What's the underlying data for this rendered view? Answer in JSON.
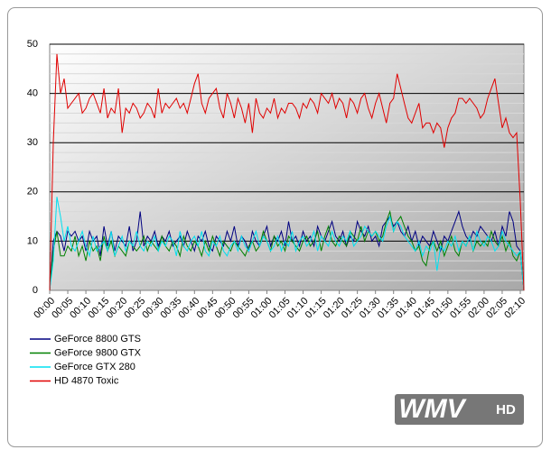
{
  "chart_data": {
    "type": "line",
    "categories": [
      "00:00",
      null,
      null,
      null,
      null,
      "00:05",
      null,
      null,
      null,
      null,
      "00:10",
      null,
      null,
      null,
      null,
      "00:15",
      null,
      null,
      null,
      null,
      "00:20",
      null,
      null,
      null,
      null,
      "00:25",
      null,
      null,
      null,
      null,
      "00:30",
      null,
      null,
      null,
      null,
      "00:35",
      null,
      null,
      null,
      null,
      "00:40",
      null,
      null,
      null,
      null,
      "00:45",
      null,
      null,
      null,
      null,
      "00:50",
      null,
      null,
      null,
      null,
      "00:55",
      null,
      null,
      null,
      null,
      "01:00",
      null,
      null,
      null,
      null,
      "01:05",
      null,
      null,
      null,
      null,
      "01:10",
      null,
      null,
      null,
      null,
      "01:15",
      null,
      null,
      null,
      null,
      "01:20",
      null,
      null,
      null,
      null,
      "01:25",
      null,
      null,
      null,
      null,
      "01:30",
      null,
      null,
      null,
      null,
      "01:35",
      null,
      null,
      null,
      null,
      "01:40",
      null,
      null,
      null,
      null,
      "01:45",
      null,
      null,
      null,
      null,
      "01:50",
      null,
      null,
      null,
      null,
      "01:55",
      null,
      null,
      null,
      null,
      "02:00",
      null,
      null,
      null,
      null,
      "02:05",
      null,
      null,
      null,
      null,
      "02:10",
      null
    ],
    "series": [
      {
        "name": "GeForce 8800 GTS",
        "color": "#000080",
        "values": [
          0,
          10,
          12,
          11,
          8,
          12,
          11,
          12,
          10,
          11,
          8,
          12,
          10,
          11,
          7,
          13,
          9,
          12,
          8,
          11,
          10,
          9,
          13,
          8,
          10,
          16,
          9,
          11,
          10,
          12,
          9,
          11,
          10,
          12,
          9,
          10,
          11,
          9,
          12,
          10,
          8,
          11,
          10,
          12,
          9,
          8,
          11,
          10,
          9,
          12,
          10,
          13,
          9,
          11,
          10,
          8,
          12,
          10,
          9,
          11,
          13,
          9,
          11,
          10,
          12,
          9,
          14,
          10,
          11,
          9,
          12,
          10,
          11,
          9,
          13,
          11,
          10,
          12,
          14,
          11,
          10,
          12,
          9,
          11,
          10,
          14,
          12,
          11,
          13,
          10,
          11,
          9,
          13,
          14,
          15,
          13,
          14,
          12,
          11,
          13,
          10,
          12,
          9,
          11,
          10,
          9,
          12,
          10,
          8,
          11,
          10,
          12,
          14,
          16,
          13,
          11,
          10,
          12,
          11,
          13,
          12,
          11,
          10,
          12,
          9,
          13,
          11,
          16,
          14,
          9,
          8,
          0
        ]
      },
      {
        "name": "GeForce 9800 GTX",
        "color": "#008000",
        "values": [
          0,
          8,
          12,
          7,
          7,
          9,
          8,
          11,
          7,
          9,
          6,
          10,
          8,
          9,
          6,
          11,
          8,
          10,
          7,
          9,
          8,
          7,
          10,
          9,
          8,
          9,
          11,
          8,
          10,
          9,
          8,
          11,
          9,
          8,
          10,
          9,
          7,
          11,
          9,
          8,
          10,
          9,
          7,
          10,
          8,
          11,
          9,
          7,
          10,
          9,
          8,
          10,
          9,
          8,
          7,
          9,
          10,
          8,
          9,
          12,
          10,
          8,
          11,
          9,
          10,
          8,
          11,
          10,
          9,
          8,
          10,
          11,
          9,
          10,
          12,
          8,
          11,
          13,
          10,
          9,
          11,
          10,
          9,
          12,
          11,
          10,
          13,
          10,
          12,
          11,
          12,
          10,
          11,
          14,
          16,
          12,
          14,
          15,
          13,
          11,
          10,
          8,
          9,
          6,
          5,
          9,
          10,
          8,
          10,
          7,
          9,
          11,
          8,
          7,
          10,
          9,
          11,
          8,
          10,
          9,
          10,
          9,
          12,
          10,
          9,
          11,
          8,
          10,
          7,
          6,
          8,
          0
        ]
      },
      {
        "name": "GeForce GTX 280",
        "color": "#00e0f0",
        "values": [
          0,
          6,
          19,
          15,
          10,
          13,
          9,
          8,
          10,
          12,
          9,
          7,
          11,
          8,
          9,
          10,
          8,
          12,
          7,
          9,
          11,
          8,
          10,
          9,
          12,
          9,
          8,
          10,
          9,
          11,
          8,
          10,
          9,
          11,
          10,
          7,
          12,
          9,
          8,
          10,
          11,
          9,
          12,
          8,
          7,
          10,
          9,
          11,
          8,
          7,
          9,
          10,
          8,
          11,
          9,
          8,
          10,
          12,
          9,
          11,
          10,
          8,
          9,
          11,
          8,
          10,
          9,
          12,
          8,
          10,
          11,
          9,
          10,
          12,
          8,
          11,
          10,
          9,
          12,
          10,
          9,
          11,
          10,
          12,
          9,
          10,
          11,
          13,
          12,
          11,
          12,
          11,
          10,
          13,
          15,
          12,
          14,
          13,
          11,
          10,
          9,
          8,
          10,
          7,
          9,
          8,
          10,
          4,
          9,
          8,
          10,
          9,
          11,
          8,
          10,
          9,
          11,
          8,
          12,
          10,
          9,
          11,
          10,
          8,
          9,
          12,
          10,
          9,
          8,
          7,
          8,
          0
        ]
      },
      {
        "name": "HD 4870 Toxic",
        "color": "#e00000",
        "values": [
          0,
          30,
          48,
          40,
          43,
          37,
          38,
          39,
          40,
          36,
          37,
          39,
          40,
          38,
          36,
          41,
          35,
          37,
          36,
          41,
          32,
          37,
          36,
          38,
          37,
          35,
          36,
          38,
          37,
          35,
          41,
          36,
          38,
          37,
          38,
          39,
          37,
          38,
          36,
          39,
          42,
          44,
          38,
          36,
          39,
          40,
          41,
          37,
          35,
          40,
          38,
          35,
          39,
          37,
          34,
          38,
          32,
          39,
          36,
          35,
          37,
          36,
          39,
          35,
          37,
          36,
          38,
          38,
          37,
          35,
          38,
          37,
          39,
          38,
          36,
          40,
          39,
          38,
          40,
          37,
          39,
          38,
          35,
          39,
          38,
          36,
          39,
          40,
          37,
          35,
          38,
          40,
          37,
          34,
          38,
          39,
          44,
          41,
          38,
          35,
          34,
          36,
          38,
          33,
          34,
          34,
          32,
          34,
          33,
          29,
          33,
          35,
          36,
          39,
          39,
          38,
          39,
          38,
          37,
          35,
          36,
          39,
          41,
          43,
          38,
          33,
          35,
          32,
          31,
          32,
          18,
          0
        ]
      }
    ],
    "ylim": [
      0,
      50
    ],
    "yticks": [
      0,
      10,
      20,
      30,
      40,
      50
    ],
    "minor_yticks": [
      2,
      4,
      6,
      8,
      12,
      14,
      16,
      18,
      22,
      24,
      26,
      28,
      32,
      34,
      36,
      38,
      42,
      44,
      46,
      48
    ],
    "grid": true,
    "legend": "bottom-left",
    "logo": "WMV",
    "logo_badge": "HD"
  }
}
